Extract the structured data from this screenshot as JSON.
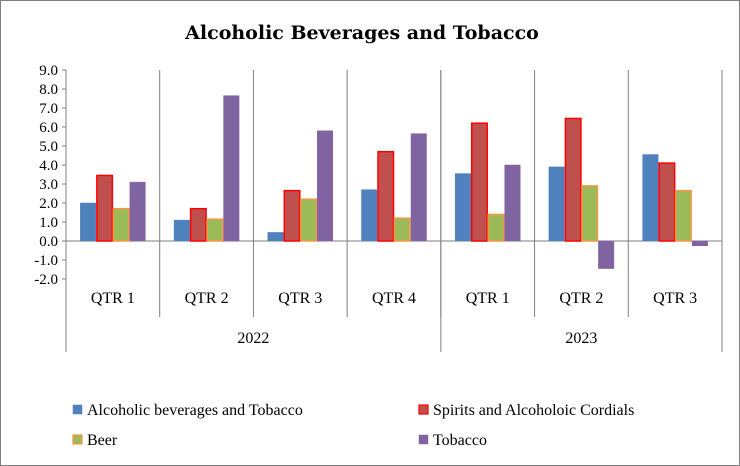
{
  "chart_data": {
    "type": "bar",
    "title": "Alcoholic  Beverages and Tobacco",
    "xlabel": "",
    "ylabel": "",
    "ylim": [
      -2.0,
      9.0
    ],
    "yticks": [
      "9.0",
      "8.0",
      "7.0",
      "6.0",
      "5.0",
      "4.0",
      "3.0",
      "2.0",
      "1.0",
      "0.0",
      "-1.0",
      "-2.0"
    ],
    "categories": [
      "QTR 1",
      "QTR 2",
      "QTR 3",
      "QTR 4",
      "QTR 1",
      "QTR 2",
      "QTR 3"
    ],
    "groups": [
      {
        "label": "2022",
        "count": 4
      },
      {
        "label": "2023",
        "count": 3
      }
    ],
    "grid": false,
    "legend_position": "bottom",
    "series": [
      {
        "name": "Alcoholic beverages and Tobacco",
        "color": "#4F81BD",
        "border": "#4F81BD",
        "values": [
          2.0,
          1.1,
          0.45,
          2.7,
          3.55,
          3.9,
          4.55
        ]
      },
      {
        "name": "Spirits and Alcoholoic Cordials",
        "color": "#C0504D",
        "border": "#FF0000",
        "values": [
          3.45,
          1.7,
          2.65,
          4.7,
          6.2,
          6.45,
          4.1
        ]
      },
      {
        "name": "Beer",
        "color": "#9BBB59",
        "border": "#F79646",
        "values": [
          1.7,
          1.15,
          2.2,
          1.2,
          1.4,
          2.9,
          2.65
        ]
      },
      {
        "name": "Tobacco",
        "color": "#8064A2",
        "border": "#8064A2",
        "values": [
          3.1,
          7.65,
          5.8,
          5.65,
          4.0,
          -1.45,
          -0.25
        ]
      }
    ]
  }
}
